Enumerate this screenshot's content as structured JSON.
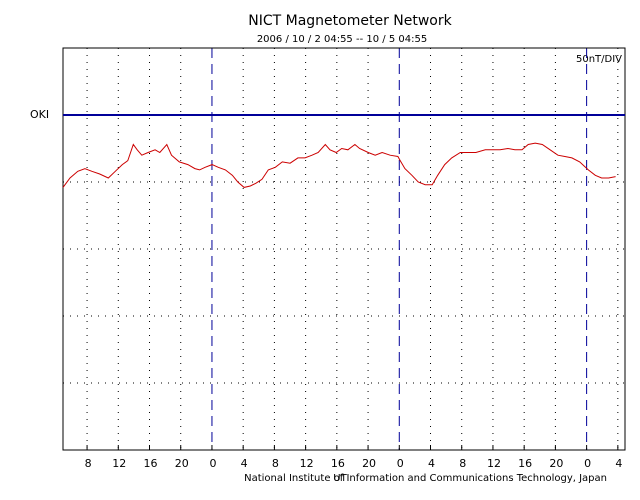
{
  "chart_data": {
    "type": "line",
    "title": "NICT Magnetometer Network",
    "subtitle": "2006 / 10 / 2   04:55 -- 10 / 5   04:55",
    "scale_note": "50nT/DIV",
    "xlabel": "UT",
    "credit": "National Institute of Information and Communications Technology, Japan",
    "station": {
      "name": "OKI",
      "color": "#cc0000",
      "baseline": 250,
      "baseline_color": "#000099"
    },
    "xlim": [
      0,
      72
    ],
    "ylim": [
      0,
      300
    ],
    "xticks": [
      {
        "value": 3.083,
        "label": "8"
      },
      {
        "value": 7.083,
        "label": "12"
      },
      {
        "value": 11.083,
        "label": "16"
      },
      {
        "value": 15.083,
        "label": "20"
      },
      {
        "value": 19.083,
        "label": "0"
      },
      {
        "value": 23.083,
        "label": "4"
      },
      {
        "value": 27.083,
        "label": "8"
      },
      {
        "value": 31.083,
        "label": "12"
      },
      {
        "value": 35.083,
        "label": "16"
      },
      {
        "value": 39.083,
        "label": "20"
      },
      {
        "value": 43.083,
        "label": "0"
      },
      {
        "value": 47.083,
        "label": "4"
      },
      {
        "value": 51.083,
        "label": "8"
      },
      {
        "value": 55.083,
        "label": "12"
      },
      {
        "value": 59.083,
        "label": "16"
      },
      {
        "value": 63.083,
        "label": "20"
      },
      {
        "value": 67.083,
        "label": "0"
      },
      {
        "value": 71.083,
        "label": "4"
      }
    ],
    "dashed_ticks": [
      4,
      10,
      16
    ],
    "dashed_color": "#000099",
    "yticks": [
      50,
      100,
      150,
      200,
      250
    ],
    "grid": true,
    "series": [
      {
        "name": "OKI",
        "color": "#cc0000",
        "x": [
          0,
          0.9,
          1.9,
          2.8,
          3.7,
          4.7,
          5.8,
          6.7,
          7.6,
          8.3,
          9.0,
          9.5,
          10.1,
          10.9,
          11.8,
          12.4,
          13.3,
          13.9,
          14.9,
          16.0,
          16.9,
          17.5,
          18.2,
          19.1,
          19.9,
          20.8,
          21.7,
          22.4,
          23.2,
          24.0,
          24.7,
          25.5,
          26.3,
          27.2,
          28.1,
          29.1,
          30.1,
          31.0,
          31.9,
          32.7,
          33.6,
          34.2,
          35.0,
          35.7,
          36.5,
          37.4,
          38.0,
          39.1,
          40.0,
          40.9,
          41.9,
          42.9,
          43.2,
          43.8,
          44.7,
          45.5,
          46.4,
          47.3,
          48.0,
          48.9,
          49.8,
          50.9,
          51.9,
          52.9,
          54.1,
          55.0,
          56.0,
          57.0,
          57.9,
          58.8,
          59.6,
          60.5,
          61.4,
          62.4,
          63.4,
          64.3,
          65.2,
          66.2,
          67.3,
          68.2,
          69.0,
          69.9,
          70.8
        ],
        "values": [
          196,
          203,
          208,
          210,
          208,
          206,
          203,
          208,
          213,
          216,
          228,
          224,
          220,
          222,
          224,
          222,
          228,
          220,
          215,
          213,
          210,
          209,
          211,
          213,
          211,
          209,
          205,
          200,
          196,
          197,
          199,
          202,
          209,
          211,
          215,
          214,
          218,
          218,
          220,
          222,
          228,
          224,
          222,
          225,
          224,
          228,
          225,
          222,
          220,
          222,
          220,
          219,
          216,
          210,
          205,
          200,
          198,
          198,
          205,
          213,
          218,
          222,
          222,
          222,
          224,
          224,
          224,
          225,
          224,
          224,
          228,
          229,
          228,
          224,
          220,
          219,
          218,
          215,
          209,
          205,
          203,
          203,
          204
        ]
      }
    ]
  }
}
